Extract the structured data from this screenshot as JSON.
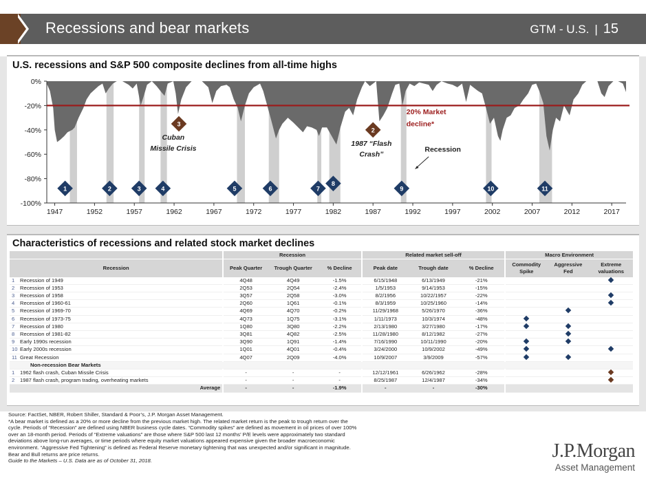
{
  "header": {
    "title": "Recessions and bear markets",
    "right_label": "GTM - U.S.",
    "separator": "|",
    "page_number": "15"
  },
  "chart": {
    "title": "U.S. recessions and S&P 500 composite declines from all-time highs"
  },
  "chart_data": {
    "type": "area",
    "title": "U.S. recessions and S&P 500 composite declines from all-time highs",
    "xlabel": "",
    "ylabel": "",
    "xlim": [
      1946,
      2018.8
    ],
    "ylim": [
      -100,
      0
    ],
    "y_ticks": [
      0,
      -20,
      -40,
      -60,
      -80,
      -100
    ],
    "y_tick_labels": [
      "0%",
      "-20%",
      "-40%",
      "-60%",
      "-80%",
      "-100%"
    ],
    "x_ticks": [
      1947,
      1952,
      1957,
      1962,
      1967,
      1972,
      1977,
      1982,
      1987,
      1992,
      1997,
      2002,
      2007,
      2012,
      2017
    ],
    "x_tick_labels": [
      "1947",
      "1952",
      "1957",
      "1962",
      "1967",
      "1972",
      "1977",
      "1982",
      "1987",
      "1992",
      "1997",
      "2002",
      "2007",
      "2012",
      "2017"
    ],
    "threshold": {
      "value": -20,
      "label_line1": "20% Market",
      "label_line2": "decline*",
      "color": "#9b1c1c"
    },
    "drawdown_series": {
      "name": "S&P 500 composite decline from all-time high",
      "color": "#6a6a6a",
      "points": [
        [
          1946.0,
          -2
        ],
        [
          1946.4,
          -8
        ],
        [
          1946.8,
          -22
        ],
        [
          1947.0,
          -40
        ],
        [
          1947.3,
          -50
        ],
        [
          1947.7,
          -48
        ],
        [
          1948.2,
          -45
        ],
        [
          1948.6,
          -42
        ],
        [
          1949.2,
          -40
        ],
        [
          1949.5,
          -38
        ],
        [
          1950.0,
          -30
        ],
        [
          1950.6,
          -22
        ],
        [
          1951.0,
          -15
        ],
        [
          1951.5,
          -10
        ],
        [
          1952.0,
          -7
        ],
        [
          1952.5,
          -4
        ],
        [
          1953.0,
          -2
        ],
        [
          1953.4,
          -10
        ],
        [
          1953.8,
          -6
        ],
        [
          1954.3,
          -2
        ],
        [
          1954.8,
          0
        ],
        [
          1955.5,
          0
        ],
        [
          1956.3,
          -3
        ],
        [
          1956.8,
          -6
        ],
        [
          1957.3,
          -2
        ],
        [
          1957.8,
          -20
        ],
        [
          1958.2,
          -12
        ],
        [
          1958.6,
          -3
        ],
        [
          1959.2,
          0
        ],
        [
          1959.8,
          -4
        ],
        [
          1960.4,
          -9
        ],
        [
          1960.8,
          -12
        ],
        [
          1961.2,
          -2
        ],
        [
          1961.9,
          0
        ],
        [
          1962.2,
          -10
        ],
        [
          1962.5,
          -27
        ],
        [
          1962.9,
          -15
        ],
        [
          1963.5,
          -5
        ],
        [
          1964.2,
          0
        ],
        [
          1965.5,
          0
        ],
        [
          1966.3,
          -5
        ],
        [
          1966.8,
          -18
        ],
        [
          1967.3,
          -8
        ],
        [
          1967.9,
          -4
        ],
        [
          1968.6,
          -3
        ],
        [
          1969.0,
          -5
        ],
        [
          1969.5,
          -15
        ],
        [
          1970.0,
          -22
        ],
        [
          1970.4,
          -33
        ],
        [
          1970.9,
          -20
        ],
        [
          1971.4,
          -10
        ],
        [
          1972.0,
          -5
        ],
        [
          1972.8,
          -2
        ],
        [
          1973.2,
          -8
        ],
        [
          1973.7,
          -20
        ],
        [
          1974.2,
          -32
        ],
        [
          1974.8,
          -47
        ],
        [
          1975.2,
          -40
        ],
        [
          1975.6,
          -35
        ],
        [
          1976.3,
          -30
        ],
        [
          1977.0,
          -34
        ],
        [
          1977.6,
          -38
        ],
        [
          1978.2,
          -42
        ],
        [
          1978.7,
          -37
        ],
        [
          1979.3,
          -38
        ],
        [
          1979.9,
          -40
        ],
        [
          1980.2,
          -45
        ],
        [
          1980.6,
          -38
        ],
        [
          1981.2,
          -38
        ],
        [
          1981.8,
          -45
        ],
        [
          1982.4,
          -52
        ],
        [
          1982.9,
          -38
        ],
        [
          1983.5,
          -25
        ],
        [
          1984.0,
          -22
        ],
        [
          1984.5,
          -28
        ],
        [
          1985.0,
          -15
        ],
        [
          1985.6,
          -5
        ],
        [
          1986.0,
          0
        ],
        [
          1986.6,
          -4
        ],
        [
          1987.4,
          0
        ],
        [
          1987.8,
          -33
        ],
        [
          1988.3,
          -28
        ],
        [
          1988.8,
          -22
        ],
        [
          1989.4,
          -10
        ],
        [
          1989.8,
          -3
        ],
        [
          1990.3,
          -2
        ],
        [
          1990.7,
          -20
        ],
        [
          1991.1,
          -8
        ],
        [
          1991.6,
          -2
        ],
        [
          1992.2,
          -4
        ],
        [
          1992.8,
          -1
        ],
        [
          1993.4,
          -2
        ],
        [
          1994.0,
          -3
        ],
        [
          1994.5,
          -8
        ],
        [
          1995.0,
          -3
        ],
        [
          1995.6,
          0
        ],
        [
          1996.4,
          -2
        ],
        [
          1997.0,
          -3
        ],
        [
          1997.6,
          -5
        ],
        [
          1998.2,
          -2
        ],
        [
          1998.7,
          -17
        ],
        [
          1999.2,
          -3
        ],
        [
          1999.6,
          -5
        ],
        [
          2000.2,
          -8
        ],
        [
          2000.7,
          -10
        ],
        [
          2001.2,
          -22
        ],
        [
          2001.7,
          -35
        ],
        [
          2002.2,
          -30
        ],
        [
          2002.7,
          -45
        ],
        [
          2003.0,
          -49
        ],
        [
          2003.3,
          -40
        ],
        [
          2003.8,
          -30
        ],
        [
          2004.3,
          -28
        ],
        [
          2004.8,
          -22
        ],
        [
          2005.4,
          -20
        ],
        [
          2005.9,
          -15
        ],
        [
          2006.5,
          -10
        ],
        [
          2007.0,
          -3
        ],
        [
          2007.5,
          -2
        ],
        [
          2007.9,
          -8
        ],
        [
          2008.4,
          -18
        ],
        [
          2008.8,
          -45
        ],
        [
          2009.2,
          -57
        ],
        [
          2009.6,
          -40
        ],
        [
          2010.0,
          -30
        ],
        [
          2010.5,
          -33
        ],
        [
          2011.0,
          -20
        ],
        [
          2011.7,
          -28
        ],
        [
          2012.2,
          -15
        ],
        [
          2012.8,
          -10
        ],
        [
          2013.3,
          -3
        ],
        [
          2013.8,
          0
        ],
        [
          2014.5,
          0
        ],
        [
          2015.2,
          0
        ],
        [
          2015.7,
          -10
        ],
        [
          2016.1,
          -13
        ],
        [
          2016.6,
          -4
        ],
        [
          2017.2,
          0
        ],
        [
          2017.8,
          0
        ],
        [
          2018.4,
          -2
        ],
        [
          2018.8,
          -9
        ]
      ]
    },
    "recession_shading": [
      [
        1948.9,
        1949.8
      ],
      [
        1953.5,
        1954.4
      ],
      [
        1957.6,
        1958.3
      ],
      [
        1960.3,
        1961.1
      ],
      [
        1969.9,
        1970.9
      ],
      [
        1973.9,
        1975.2
      ],
      [
        1980.0,
        1980.5
      ],
      [
        1981.5,
        1982.9
      ],
      [
        1990.5,
        1991.2
      ],
      [
        2001.2,
        2001.9
      ],
      [
        2007.9,
        2009.5
      ]
    ],
    "recession_markers": [
      {
        "label": "1",
        "x": 1948.3,
        "y": -88
      },
      {
        "label": "2",
        "x": 1953.9,
        "y": -88
      },
      {
        "label": "3",
        "x": 1957.6,
        "y": -88
      },
      {
        "label": "4",
        "x": 1960.6,
        "y": -88
      },
      {
        "label": "5",
        "x": 1969.6,
        "y": -88
      },
      {
        "label": "6",
        "x": 1974.1,
        "y": -88
      },
      {
        "label": "7",
        "x": 1980.1,
        "y": -88
      },
      {
        "label": "8",
        "x": 1982.0,
        "y": -84
      },
      {
        "label": "9",
        "x": 1990.6,
        "y": -88
      },
      {
        "label": "10",
        "x": 2001.8,
        "y": -88
      },
      {
        "label": "11",
        "x": 2008.6,
        "y": -88
      }
    ],
    "event_markers": [
      {
        "label": "3",
        "x": 1962.6,
        "y": -35
      },
      {
        "label": "2",
        "x": 1987.0,
        "y": -40
      }
    ],
    "annotations": [
      {
        "text": "Cuban",
        "x": 1961.9,
        "y": -48
      },
      {
        "text": "Missile Crisis",
        "x": 1961.9,
        "y": -57
      },
      {
        "text": "1987 “Flash",
        "x": 1986.8,
        "y": -53
      },
      {
        "text": "Crash”",
        "x": 1986.8,
        "y": -62
      },
      {
        "text": "Recession",
        "x": 1993.5,
        "y": -58
      }
    ]
  },
  "table": {
    "title": "Characteristics of recessions and related stock market declines",
    "group_headers": [
      "Recession",
      "Related market sell-off",
      "Macro Environment"
    ],
    "columns": [
      "Recession",
      "Peak Quarter",
      "Trough Quarter",
      "% Decline",
      "Peak date",
      "Trough date",
      "% Decline",
      "Commodity Spike",
      "Aggressive Fed",
      "Extreme valuations"
    ],
    "rows": [
      {
        "num": "1",
        "name": "Recession of 1949",
        "peak_q": "4Q48",
        "trough_q": "4Q49",
        "rec_decl": "-1.5%",
        "peak_date": "6/15/1948",
        "trough_date": "6/13/1949",
        "mkt_decl": "-21%",
        "commodity": false,
        "fed": false,
        "valuations": true
      },
      {
        "num": "2",
        "name": "Recession of 1953",
        "peak_q": "2Q53",
        "trough_q": "2Q54",
        "rec_decl": "-2.4%",
        "peak_date": "1/5/1953",
        "trough_date": "9/14/1953",
        "mkt_decl": "-15%",
        "commodity": false,
        "fed": false,
        "valuations": false
      },
      {
        "num": "3",
        "name": "Recession of 1958",
        "peak_q": "3Q57",
        "trough_q": "2Q58",
        "rec_decl": "-3.0%",
        "peak_date": "8/2/1956",
        "trough_date": "10/22/1957",
        "mkt_decl": "-22%",
        "commodity": false,
        "fed": false,
        "valuations": true
      },
      {
        "num": "4",
        "name": "Recession of 1960-61",
        "peak_q": "2Q60",
        "trough_q": "1Q61",
        "rec_decl": "-0.1%",
        "peak_date": "8/3/1959",
        "trough_date": "10/25/1960",
        "mkt_decl": "-14%",
        "commodity": false,
        "fed": false,
        "valuations": true
      },
      {
        "num": "5",
        "name": "Recession of 1969-70",
        "peak_q": "4Q69",
        "trough_q": "4Q70",
        "rec_decl": "-0.2%",
        "peak_date": "11/29/1968",
        "trough_date": "5/26/1970",
        "mkt_decl": "-36%",
        "commodity": false,
        "fed": true,
        "valuations": false
      },
      {
        "num": "6",
        "name": "Recession of 1973-75",
        "peak_q": "4Q73",
        "trough_q": "1Q75",
        "rec_decl": "-3.1%",
        "peak_date": "1/11/1973",
        "trough_date": "10/3/1974",
        "mkt_decl": "-48%",
        "commodity": true,
        "fed": false,
        "valuations": false
      },
      {
        "num": "7",
        "name": "Recession of 1980",
        "peak_q": "1Q80",
        "trough_q": "3Q80",
        "rec_decl": "-2.2%",
        "peak_date": "2/13/1980",
        "trough_date": "3/27/1980",
        "mkt_decl": "-17%",
        "commodity": true,
        "fed": true,
        "valuations": false
      },
      {
        "num": "8",
        "name": "Recession of 1981-82",
        "peak_q": "3Q81",
        "trough_q": "4Q82",
        "rec_decl": "-2.5%",
        "peak_date": "11/28/1980",
        "trough_date": "8/12/1982",
        "mkt_decl": "-27%",
        "commodity": false,
        "fed": true,
        "valuations": false
      },
      {
        "num": "9",
        "name": "Early 1990s recession",
        "peak_q": "3Q90",
        "trough_q": "1Q91",
        "rec_decl": "-1.4%",
        "peak_date": "7/16/1990",
        "trough_date": "10/11/1990",
        "mkt_decl": "-20%",
        "commodity": true,
        "fed": true,
        "valuations": false
      },
      {
        "num": "10",
        "name": "Early 2000s recession",
        "peak_q": "1Q01",
        "trough_q": "4Q01",
        "rec_decl": "-0.4%",
        "peak_date": "3/24/2000",
        "trough_date": "10/9/2002",
        "mkt_decl": "-49%",
        "commodity": true,
        "fed": false,
        "valuations": true
      },
      {
        "num": "11",
        "name": "Great Recession",
        "peak_q": "4Q07",
        "trough_q": "2Q09",
        "rec_decl": "-4.0%",
        "peak_date": "10/9/2007",
        "trough_date": "3/9/2009",
        "mkt_decl": "-57%",
        "commodity": true,
        "fed": true,
        "valuations": false
      }
    ],
    "subheader": "Non-recession Bear Markets",
    "non_recession_rows": [
      {
        "num": "1",
        "name": "1962 flash crash, Cuban Missile Crisis",
        "peak_q": "-",
        "trough_q": "-",
        "rec_decl": "-",
        "peak_date": "12/12/1961",
        "trough_date": "6/26/1962",
        "mkt_decl": "-28%",
        "commodity": false,
        "fed": false,
        "valuations": true
      },
      {
        "num": "2",
        "name": "1987 flash crash, program trading, overheating markets",
        "peak_q": "-",
        "trough_q": "-",
        "rec_decl": "-",
        "peak_date": "8/25/1987",
        "trough_date": "12/4/1987",
        "mkt_decl": "-34%",
        "commodity": false,
        "fed": false,
        "valuations": true
      }
    ],
    "average_row": {
      "label": "Average",
      "peak_q": "-",
      "trough_q": "-",
      "rec_decl": "-1.9%",
      "peak_date": "-",
      "trough_date": "-",
      "mkt_decl": "-30%"
    }
  },
  "footnotes": {
    "lines": [
      "Source: FactSet, NBER, Robert Shiller, Standard & Poor’s, J.P. Morgan Asset Management.",
      "*A bear market is defined as a 20% or more decline from the previous market high. The related market return is the peak to trough return over the",
      "cycle. Periods of “Recession” are defined using NBER business cycle dates. “Commodity spikes” are defined as movement in oil prices of over 100%",
      "over an 18-month period. Periods of “Extreme valuations” are those where S&P 500 last 12 months’ P/E levels were approximately two standard",
      "deviations above long-run averages, or time periods where equity market valuations appeared expensive given the broader macroeconomic",
      "environment. “Aggressive Fed Tightening” is defined as Federal Reserve monetary tightening that was unexpected and/or significant in magnitude.",
      "Bear and Bull returns are price returns."
    ],
    "guide": "Guide to the Markets – U.S. Data are as of October 31, 2018."
  },
  "logo": {
    "line1": "J.P.Morgan",
    "line2": "Asset Management"
  },
  "colors": {
    "header_bg": "#5d5d5d",
    "header_accent": "#6b4226",
    "area": "#6a6a6a",
    "threshold": "#9b1c1c",
    "marker_blue": "#1f3c66",
    "marker_brown": "#6b3a21"
  }
}
